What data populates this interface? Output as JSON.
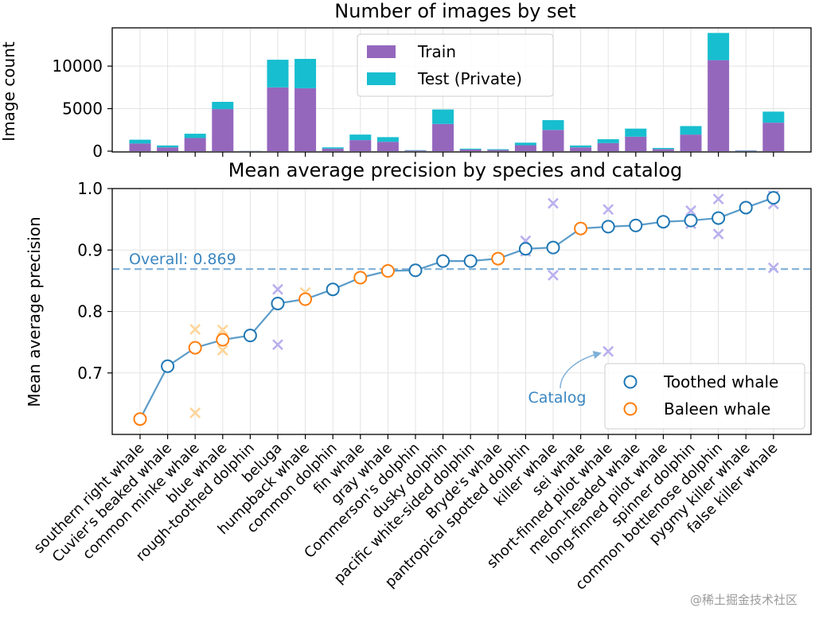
{
  "chart_data": [
    {
      "type": "bar",
      "stacked": true,
      "title": "Number of images by set",
      "xlabel": "",
      "ylabel": "Image count",
      "ylim": [
        0,
        14500
      ],
      "yticks": [
        0,
        5000,
        10000
      ],
      "grid": true,
      "legend_position": "top-center",
      "categories": [
        "southern right whale",
        "Cuvier's beaked whale",
        "common minke whale",
        "blue whale",
        "rough-toothed dolphin",
        "beluga",
        "humpback whale",
        "common dolphin",
        "fin whale",
        "gray whale",
        "Commerson's dolphin",
        "dusky dolphin",
        "pacific white-sided dolphin",
        "Bryde's whale",
        "pantropical spotted dolphin",
        "killer whale",
        "sei whale",
        "short-finned pilot whale",
        "melon-headed whale",
        "long-finned pilot whale",
        "spinner dolphin",
        "common bottlenose dolphin",
        "pygmy killer whale",
        "false killer whale"
      ],
      "series": [
        {
          "name": "Train",
          "color": "#9467bd",
          "values": [
            900,
            450,
            1550,
            4950,
            20,
            7500,
            7400,
            300,
            1300,
            1100,
            80,
            3200,
            200,
            150,
            700,
            2500,
            450,
            950,
            1700,
            250,
            1950,
            10700,
            60,
            3350
          ]
        },
        {
          "name": "Test (Private)",
          "color": "#17becf",
          "values": [
            450,
            220,
            500,
            850,
            10,
            3250,
            3450,
            150,
            650,
            550,
            40,
            1700,
            100,
            80,
            300,
            1150,
            220,
            450,
            950,
            130,
            1000,
            3200,
            30,
            1300
          ]
        }
      ]
    },
    {
      "type": "line",
      "title": "Mean average precision by species and catalog",
      "xlabel": "",
      "ylabel": "Mean average precision",
      "ylim": [
        0.6,
        1.0
      ],
      "yticks": [
        0.7,
        0.8,
        0.9,
        1.0
      ],
      "grid": true,
      "legend_position": "lower-right",
      "overall": {
        "value": 0.869,
        "label": "Overall: 0.869"
      },
      "annotation": "Catalog",
      "series": [
        {
          "name": "Toothed whale",
          "color": "#1f77b4"
        },
        {
          "name": "Baleen whale",
          "color": "#ff7f0e"
        }
      ],
      "points": [
        {
          "species": "southern right whale",
          "map": 0.625,
          "group": "baleen",
          "catalogs": []
        },
        {
          "species": "Cuvier's beaked whale",
          "map": 0.711,
          "group": "toothed",
          "catalogs": []
        },
        {
          "species": "common minke whale",
          "map": 0.741,
          "group": "baleen",
          "catalogs": [
            0.771,
            0.635
          ]
        },
        {
          "species": "blue whale",
          "map": 0.754,
          "group": "baleen",
          "catalogs": [
            0.77,
            0.737
          ]
        },
        {
          "species": "rough-toothed dolphin",
          "map": 0.761,
          "group": "toothed",
          "catalogs": []
        },
        {
          "species": "beluga",
          "map": 0.813,
          "group": "toothed",
          "catalogs": [
            0.836,
            0.746
          ]
        },
        {
          "species": "humpback whale",
          "map": 0.82,
          "group": "baleen",
          "catalogs": [
            0.831
          ]
        },
        {
          "species": "common dolphin",
          "map": 0.836,
          "group": "toothed",
          "catalogs": []
        },
        {
          "species": "fin whale",
          "map": 0.855,
          "group": "baleen",
          "catalogs": []
        },
        {
          "species": "gray whale",
          "map": 0.866,
          "group": "baleen",
          "catalogs": []
        },
        {
          "species": "Commerson's dolphin",
          "map": 0.867,
          "group": "toothed",
          "catalogs": []
        },
        {
          "species": "dusky dolphin",
          "map": 0.882,
          "group": "toothed",
          "catalogs": []
        },
        {
          "species": "pacific white-sided dolphin",
          "map": 0.882,
          "group": "toothed",
          "catalogs": []
        },
        {
          "species": "Bryde's whale",
          "map": 0.886,
          "group": "baleen",
          "catalogs": []
        },
        {
          "species": "pantropical spotted dolphin",
          "map": 0.902,
          "group": "toothed",
          "catalogs": [
            0.915,
            0.898
          ]
        },
        {
          "species": "killer whale",
          "map": 0.904,
          "group": "toothed",
          "catalogs": [
            0.976,
            0.859
          ]
        },
        {
          "species": "sei whale",
          "map": 0.935,
          "group": "baleen",
          "catalogs": []
        },
        {
          "species": "short-finned pilot whale",
          "map": 0.938,
          "group": "toothed",
          "catalogs": [
            0.966,
            0.735
          ]
        },
        {
          "species": "melon-headed whale",
          "map": 0.94,
          "group": "toothed",
          "catalogs": []
        },
        {
          "species": "long-finned pilot whale",
          "map": 0.946,
          "group": "toothed",
          "catalogs": []
        },
        {
          "species": "spinner dolphin",
          "map": 0.948,
          "group": "toothed",
          "catalogs": [
            0.964,
            0.943
          ]
        },
        {
          "species": "common bottlenose dolphin",
          "map": 0.952,
          "group": "toothed",
          "catalogs": [
            0.983,
            0.926
          ]
        },
        {
          "species": "pygmy killer whale",
          "map": 0.969,
          "group": "toothed",
          "catalogs": []
        },
        {
          "species": "false killer whale",
          "map": 0.985,
          "group": "toothed",
          "catalogs": [
            0.988,
            0.975,
            0.871
          ]
        }
      ]
    }
  ],
  "watermark": "@稀土掘金技术社区"
}
